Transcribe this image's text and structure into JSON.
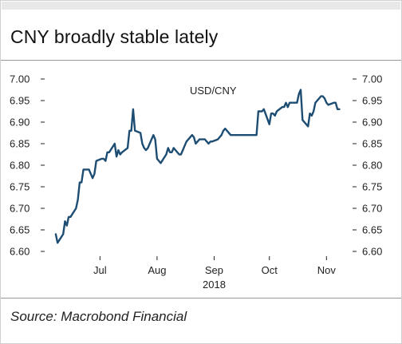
{
  "title": "CNY broadly stable lately",
  "source": "Source: Macrobond Financial",
  "colors": {
    "line": "#1e4d73",
    "axis": "#222222",
    "rule": "#9a9a9a"
  },
  "chart_data": {
    "type": "line",
    "title": "CNY broadly stable lately",
    "series": [
      {
        "name": "USD/CNY",
        "color": "#1e4d73",
        "points": [
          [
            "2018-06-21",
            6.64
          ],
          [
            "2018-06-22",
            6.62
          ],
          [
            "2018-06-25",
            6.64
          ],
          [
            "2018-06-26",
            6.67
          ],
          [
            "2018-06-27",
            6.66
          ],
          [
            "2018-06-28",
            6.68
          ],
          [
            "2018-06-29",
            6.68
          ],
          [
            "2018-07-02",
            6.7
          ],
          [
            "2018-07-03",
            6.72
          ],
          [
            "2018-07-04",
            6.76
          ],
          [
            "2018-07-05",
            6.76
          ],
          [
            "2018-07-06",
            6.79
          ],
          [
            "2018-07-09",
            6.79
          ],
          [
            "2018-07-10",
            6.78
          ],
          [
            "2018-07-11",
            6.77
          ],
          [
            "2018-07-12",
            6.78
          ],
          [
            "2018-07-13",
            6.81
          ],
          [
            "2018-07-16",
            6.815
          ],
          [
            "2018-07-17",
            6.815
          ],
          [
            "2018-07-18",
            6.81
          ],
          [
            "2018-07-19",
            6.83
          ],
          [
            "2018-07-20",
            6.83
          ],
          [
            "2018-07-23",
            6.85
          ],
          [
            "2018-07-24",
            6.82
          ],
          [
            "2018-07-25",
            6.835
          ],
          [
            "2018-07-26",
            6.825
          ],
          [
            "2018-07-27",
            6.83
          ],
          [
            "2018-07-30",
            6.84
          ],
          [
            "2018-07-31",
            6.88
          ],
          [
            "2018-08-01",
            6.88
          ],
          [
            "2018-08-02",
            6.93
          ],
          [
            "2018-08-03",
            6.88
          ],
          [
            "2018-08-06",
            6.875
          ],
          [
            "2018-08-07",
            6.85
          ],
          [
            "2018-08-08",
            6.84
          ],
          [
            "2018-08-09",
            6.835
          ],
          [
            "2018-08-10",
            6.84
          ],
          [
            "2018-08-13",
            6.87
          ],
          [
            "2018-08-14",
            6.86
          ],
          [
            "2018-08-15",
            6.815
          ],
          [
            "2018-08-16",
            6.81
          ],
          [
            "2018-08-17",
            6.805
          ],
          [
            "2018-08-20",
            6.825
          ],
          [
            "2018-08-21",
            6.84
          ],
          [
            "2018-08-22",
            6.83
          ],
          [
            "2018-08-23",
            6.83
          ],
          [
            "2018-08-24",
            6.84
          ],
          [
            "2018-08-27",
            6.825
          ],
          [
            "2018-08-28",
            6.825
          ],
          [
            "2018-08-29",
            6.835
          ],
          [
            "2018-08-30",
            6.845
          ],
          [
            "2018-08-31",
            6.855
          ],
          [
            "2018-09-03",
            6.87
          ],
          [
            "2018-09-04",
            6.865
          ],
          [
            "2018-09-05",
            6.85
          ],
          [
            "2018-09-06",
            6.855
          ],
          [
            "2018-09-07",
            6.86
          ],
          [
            "2018-09-10",
            6.86
          ],
          [
            "2018-09-11",
            6.855
          ],
          [
            "2018-09-12",
            6.85
          ],
          [
            "2018-09-13",
            6.855
          ],
          [
            "2018-09-14",
            6.855
          ],
          [
            "2018-09-17",
            6.86
          ],
          [
            "2018-09-18",
            6.865
          ],
          [
            "2018-09-19",
            6.87
          ],
          [
            "2018-09-20",
            6.88
          ],
          [
            "2018-09-21",
            6.885
          ],
          [
            "2018-09-24",
            6.87
          ],
          [
            "2018-09-25",
            6.87
          ],
          [
            "2018-09-26",
            6.87
          ],
          [
            "2018-09-27",
            6.87
          ],
          [
            "2018-09-28",
            6.87
          ],
          [
            "2018-10-08",
            6.87
          ],
          [
            "2018-10-09",
            6.925
          ],
          [
            "2018-10-10",
            6.925
          ],
          [
            "2018-10-11",
            6.925
          ],
          [
            "2018-10-12",
            6.93
          ],
          [
            "2018-10-15",
            6.895
          ],
          [
            "2018-10-16",
            6.92
          ],
          [
            "2018-10-17",
            6.92
          ],
          [
            "2018-10-18",
            6.915
          ],
          [
            "2018-10-19",
            6.925
          ],
          [
            "2018-10-22",
            6.935
          ],
          [
            "2018-10-23",
            6.935
          ],
          [
            "2018-10-24",
            6.945
          ],
          [
            "2018-10-25",
            6.935
          ],
          [
            "2018-10-26",
            6.945
          ],
          [
            "2018-10-29",
            6.945
          ],
          [
            "2018-10-30",
            6.945
          ],
          [
            "2018-10-31",
            6.965
          ],
          [
            "2018-11-01",
            6.975
          ],
          [
            "2018-11-02",
            6.905
          ],
          [
            "2018-11-05",
            6.89
          ],
          [
            "2018-11-06",
            6.92
          ],
          [
            "2018-11-07",
            6.915
          ],
          [
            "2018-11-08",
            6.925
          ],
          [
            "2018-11-09",
            6.945
          ],
          [
            "2018-11-12",
            6.96
          ],
          [
            "2018-11-13",
            6.96
          ],
          [
            "2018-11-14",
            6.955
          ],
          [
            "2018-11-15",
            6.945
          ],
          [
            "2018-11-16",
            6.94
          ],
          [
            "2018-11-19",
            6.945
          ],
          [
            "2018-11-20",
            6.945
          ],
          [
            "2018-11-21",
            6.93
          ],
          [
            "2018-11-22",
            6.93
          ]
        ]
      }
    ],
    "y_ticks": [
      "6.60",
      "6.65",
      "6.70",
      "6.75",
      "6.80",
      "6.85",
      "6.90",
      "6.95",
      "7.00"
    ],
    "ylim": [
      6.6,
      7.0
    ],
    "x_ticks": [
      {
        "date": "2018-07-15",
        "label": "Jul"
      },
      {
        "date": "2018-08-15",
        "label": "Aug"
      },
      {
        "date": "2018-09-15",
        "label": "Sep"
      },
      {
        "date": "2018-10-15",
        "label": "Oct"
      },
      {
        "date": "2018-11-15",
        "label": "Nov"
      }
    ],
    "xlim": [
      "2018-06-18",
      "2018-11-27"
    ],
    "year_label": "2018",
    "series_label": "USD/CNY",
    "grid": false,
    "dual_y_axis": true
  }
}
